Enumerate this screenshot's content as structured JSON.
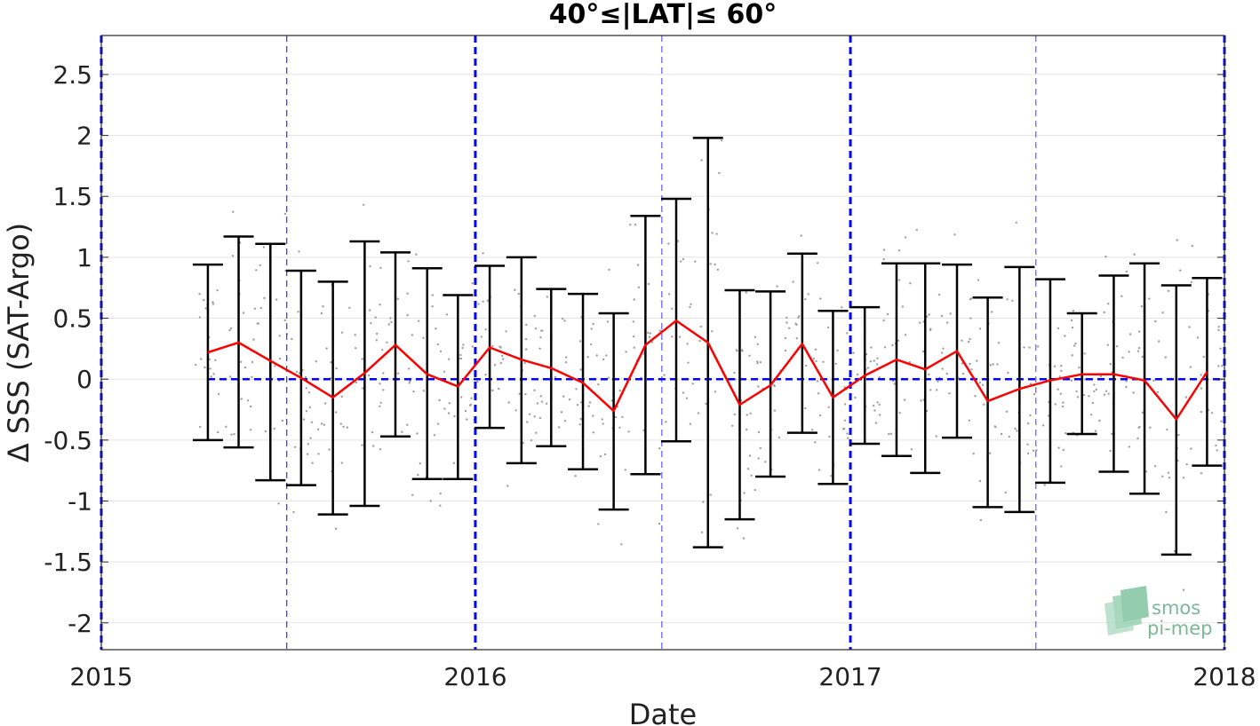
{
  "chart_data": {
    "type": "line",
    "title": "40°≤|LAT|≤ 60°",
    "xlabel": "Date",
    "ylabel": "Δ SSS (SAT-Argo)",
    "xlim": [
      "2015-01-01",
      "2018-01-01"
    ],
    "ylim": [
      -2.22,
      2.82
    ],
    "x_ticks": [
      "2015",
      "2016",
      "2017",
      "2018"
    ],
    "y_ticks": [
      -2,
      -1.5,
      -1,
      -0.5,
      0,
      0.5,
      1,
      1.5,
      2,
      2.5
    ],
    "grid": "horizontal",
    "year_lines": [
      "2015-01-01",
      "2016-01-01",
      "2017-01-01",
      "2018-01-01"
    ],
    "half_year_lines": [
      "2015-07-01",
      "2016-07-01",
      "2017-07-01"
    ],
    "zero_line": 0,
    "series": [
      {
        "color": "#ff0000",
        "dates": [
          "2015-04-15",
          "2015-05-15",
          "2015-06-15",
          "2015-07-15",
          "2015-08-15",
          "2015-09-15",
          "2015-10-15",
          "2015-11-15",
          "2015-12-15",
          "2016-01-15",
          "2016-02-15",
          "2016-03-15",
          "2016-04-15",
          "2016-05-15",
          "2016-06-15",
          "2016-07-15",
          "2016-08-15",
          "2016-09-15",
          "2016-10-15",
          "2016-11-15",
          "2016-12-15",
          "2017-01-15",
          "2017-02-15",
          "2017-03-15",
          "2017-04-15",
          "2017-05-15",
          "2017-06-15",
          "2017-07-15",
          "2017-08-15",
          "2017-09-15",
          "2017-10-15",
          "2017-11-15",
          "2017-12-15"
        ],
        "mean": [
          0.22,
          0.3,
          0.15,
          0.01,
          -0.15,
          0.05,
          0.28,
          0.04,
          -0.06,
          0.26,
          0.16,
          0.09,
          -0.03,
          -0.26,
          0.28,
          0.48,
          0.3,
          -0.21,
          -0.05,
          0.29,
          -0.15,
          0.03,
          0.16,
          0.08,
          0.23,
          -0.18,
          -0.08,
          -0.01,
          0.04,
          0.04,
          -0.01,
          -0.33,
          0.06
        ],
        "upper": [
          0.94,
          1.17,
          1.11,
          0.89,
          0.8,
          1.13,
          1.04,
          0.91,
          0.69,
          0.93,
          1.0,
          0.74,
          0.7,
          0.54,
          1.34,
          1.48,
          1.98,
          0.73,
          0.72,
          1.03,
          0.56,
          0.59,
          0.95,
          0.95,
          0.94,
          0.67,
          0.92,
          0.82,
          0.54,
          0.85,
          0.95,
          0.77,
          0.83
        ],
        "lower": [
          -0.5,
          -0.56,
          -0.83,
          -0.87,
          -1.11,
          -1.04,
          -0.47,
          -0.82,
          -0.82,
          -0.4,
          -0.69,
          -0.55,
          -0.74,
          -1.07,
          -0.78,
          -0.51,
          -1.38,
          -1.15,
          -0.8,
          -0.44,
          -0.86,
          -0.53,
          -0.63,
          -0.77,
          -0.48,
          -1.05,
          -1.09,
          -0.85,
          -0.45,
          -0.76,
          -0.94,
          -1.44,
          -0.71
        ]
      }
    ],
    "scatter_color": "#9e9e9e"
  },
  "logo": {
    "line1": "smos",
    "line2": "pi-mep"
  }
}
